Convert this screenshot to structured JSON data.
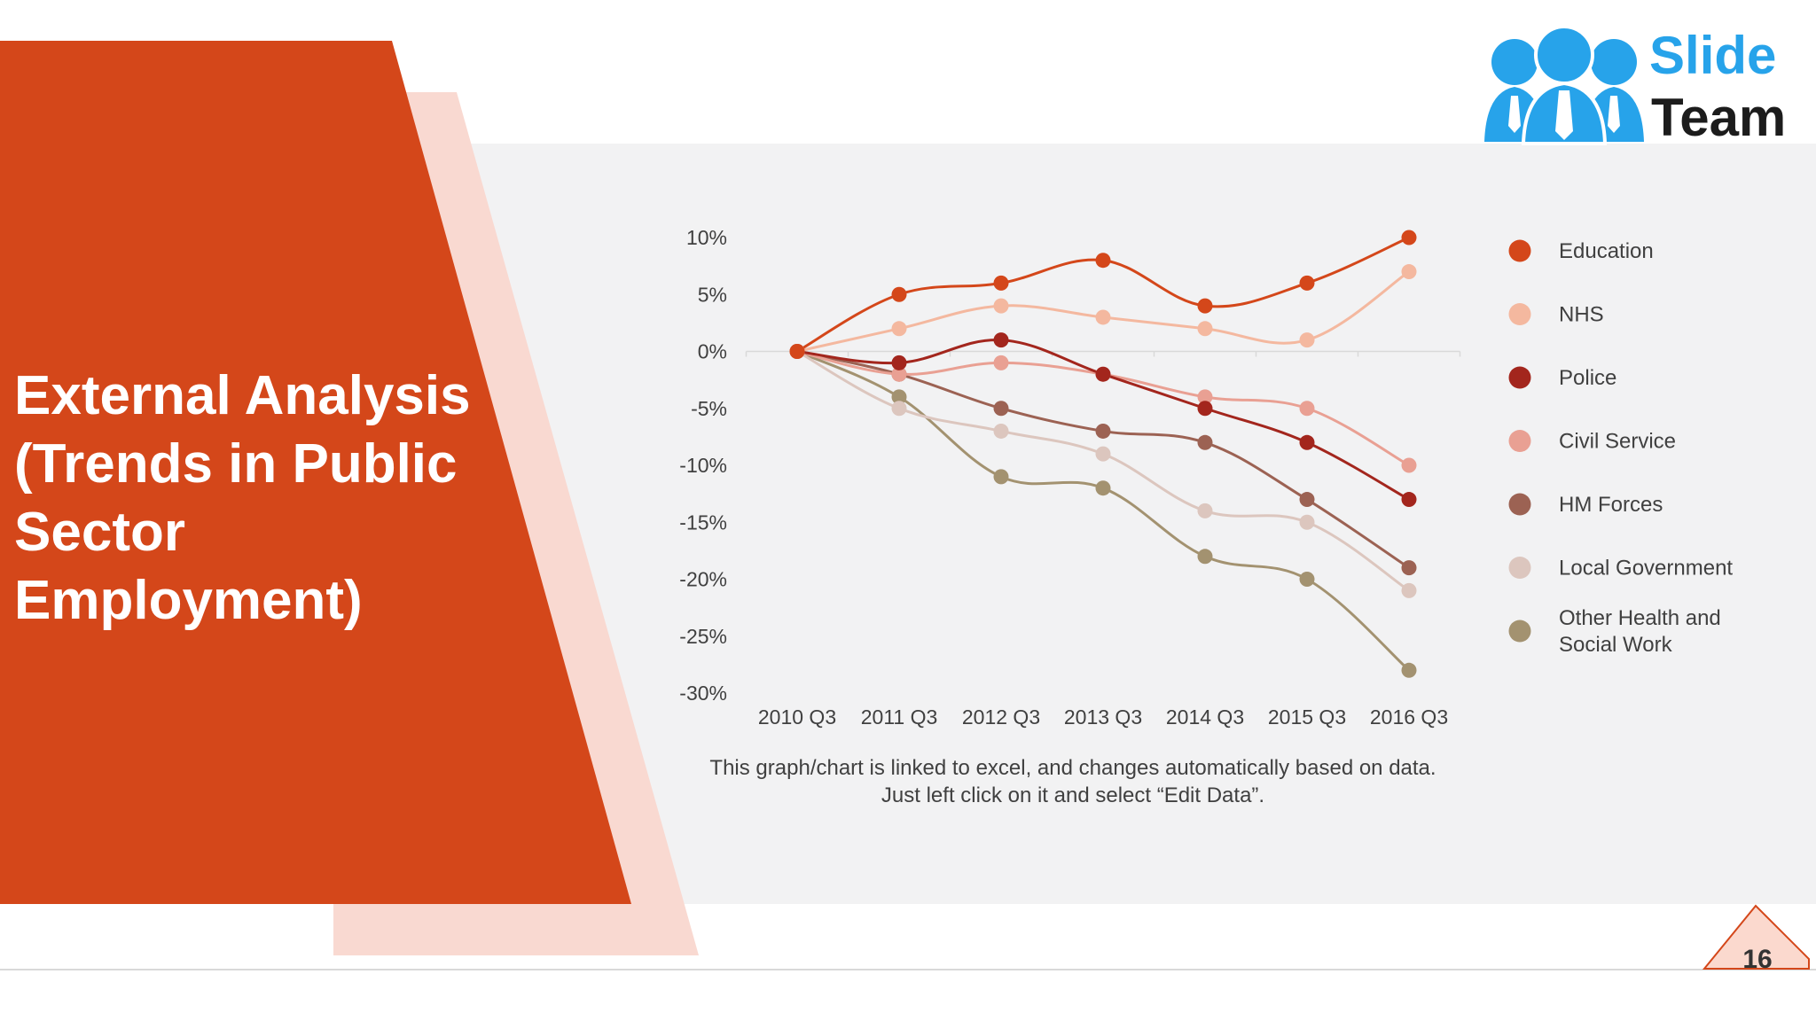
{
  "slide": {
    "title": "External Analysis (Trends in Public Sector Employment)",
    "note": "This graph/chart is linked to excel, and changes automatically based on data. Just left click on it and select “Edit Data”.",
    "page_number": "16",
    "logo": {
      "line1": "Slide",
      "line2": "Team",
      "icon": "three-people-icon"
    }
  },
  "colors": {
    "primary_orange": "#d4471a",
    "light_peach": "#f9d9d1",
    "panel_gray": "#f2f2f3",
    "logo_blue": "#27a3ea",
    "text_gray": "#404040"
  },
  "chart_data": {
    "type": "line",
    "categories": [
      "2010 Q3",
      "2011 Q3",
      "2012 Q3",
      "2013 Q3",
      "2014 Q3",
      "2015 Q3",
      "2016 Q3"
    ],
    "ylim": [
      -30,
      10
    ],
    "yticks": [
      10,
      5,
      0,
      -5,
      -10,
      -15,
      -20,
      -25,
      -30
    ],
    "ytick_labels": [
      "10%",
      "5%",
      "0%",
      "-5%",
      "-10%",
      "-15%",
      "-20%",
      "-25%",
      "-30%"
    ],
    "unit": "%",
    "smooth": true,
    "markers": true,
    "grid": false,
    "legend_position": "right",
    "series": [
      {
        "name": "Education",
        "color": "#d4471a",
        "values": [
          0,
          5,
          6,
          8,
          4,
          6,
          10
        ]
      },
      {
        "name": "NHS",
        "color": "#f4b89f",
        "values": [
          0,
          2,
          4,
          3,
          2,
          1,
          7
        ]
      },
      {
        "name": "Police",
        "color": "#a3261d",
        "values": [
          0,
          -1,
          1,
          -2,
          -5,
          -8,
          -13
        ]
      },
      {
        "name": "Civil Service",
        "color": "#e9a093",
        "values": [
          0,
          -2,
          -1,
          -2,
          -4,
          -5,
          -10
        ]
      },
      {
        "name": "HM Forces",
        "color": "#9c6253",
        "values": [
          0,
          -2,
          -5,
          -7,
          -8,
          -13,
          -19
        ]
      },
      {
        "name": "Local Government",
        "color": "#dcc6be",
        "values": [
          0,
          -5,
          -7,
          -9,
          -14,
          -15,
          -21
        ]
      },
      {
        "name": "Other Health and Social Work",
        "legend_lines": [
          "Other Health and",
          "Social Work"
        ],
        "color": "#a39270",
        "values": [
          0,
          -4,
          -11,
          -12,
          -18,
          -20,
          -28
        ]
      }
    ]
  }
}
